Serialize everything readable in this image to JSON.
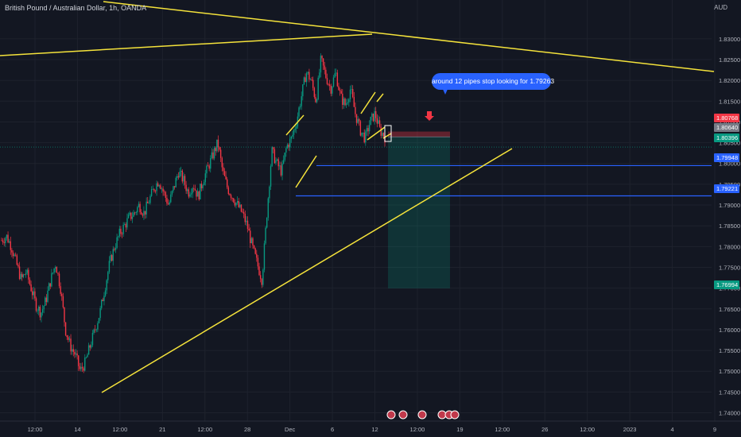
{
  "header": {
    "title": "British Pound / Australian Dollar, 1h, OANDA",
    "currency": "AUD"
  },
  "annotation": {
    "text": "around 12 pipes stop looking for 1.79263"
  },
  "chart_data": {
    "type": "line",
    "title": "British Pound / Australian Dollar, 1h, OANDA",
    "xlabel": "",
    "ylabel": "AUD",
    "ylim": [
      1.738,
      1.838
    ],
    "y_ticks": [
      "1.83000",
      "1.82500",
      "1.82000",
      "1.81500",
      "1.81000",
      "1.80500",
      "1.80000",
      "1.79500",
      "1.79000",
      "1.78500",
      "1.78000",
      "1.77500",
      "1.77000",
      "1.76500",
      "1.76000",
      "1.75500",
      "1.75000",
      "1.74500",
      "1.74000"
    ],
    "x_ticks": [
      "12:00",
      "14",
      "12:00",
      "21",
      "12:00",
      "28",
      "Dec",
      "6",
      "12",
      "12:00",
      "19",
      "12:00",
      "26",
      "12:00",
      "2023",
      "4",
      "9"
    ],
    "grid": true,
    "series": [
      {
        "values": [
          1.7815,
          1.7825,
          1.78,
          1.776,
          1.772,
          1.774,
          1.77,
          1.766,
          1.764,
          1.767,
          1.772,
          1.776,
          1.77,
          1.76,
          1.756,
          1.754,
          1.75,
          1.752,
          1.756,
          1.76,
          1.764,
          1.77,
          1.776,
          1.78,
          1.783,
          1.785,
          1.787,
          1.788,
          1.79,
          1.788,
          1.791,
          1.794,
          1.796,
          1.793,
          1.79,
          1.794,
          1.798,
          1.796,
          1.793,
          1.795,
          1.792,
          1.796,
          1.799,
          1.802,
          1.805,
          1.798,
          1.794,
          1.792,
          1.79,
          1.788,
          1.785,
          1.78,
          1.776,
          1.772,
          1.788,
          1.803,
          1.8,
          1.798,
          1.804,
          1.806,
          1.81,
          1.816,
          1.822,
          1.82,
          1.815,
          1.825,
          1.821,
          1.818,
          1.822,
          1.816,
          1.814,
          1.818,
          1.812,
          1.808,
          1.806,
          1.81,
          1.812,
          1.808,
          1.8064
        ]
      }
    ],
    "price_labels": [
      {
        "value": "1.80768",
        "color": "#f23645"
      },
      {
        "value": "1.80640",
        "color": "#787b86"
      },
      {
        "value": "1.80396",
        "color": "#089981"
      },
      {
        "value": "1.79948",
        "color": "#2962ff"
      },
      {
        "value": "1.79221",
        "color": "#2962ff"
      },
      {
        "value": "1.76994",
        "color": "#089981"
      }
    ],
    "levels": [
      1.79948,
      1.79221
    ],
    "position": {
      "type": "short",
      "entry": 1.8064,
      "stop": 1.80768,
      "target": 1.76994
    },
    "colors": {
      "up": "#089981",
      "down": "#f23645",
      "trendline": "#f5e33b",
      "level": "#2962ff",
      "background": "#131722"
    }
  }
}
